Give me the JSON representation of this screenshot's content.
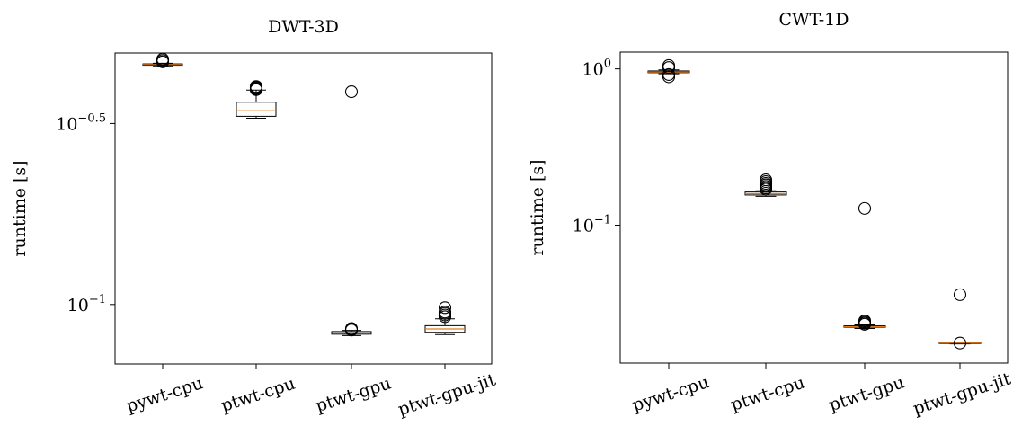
{
  "chart_data": [
    {
      "type": "box",
      "title": "DWT-3D",
      "ylabel": "runtime [s]",
      "xlabel": "",
      "yscale": "log",
      "ylim": [
        0.0685,
        0.495
      ],
      "yticks": [
        {
          "value": 0.3162,
          "base": "10",
          "exp": "−0.5"
        },
        {
          "value": 0.1,
          "base": "10",
          "exp": "−1"
        }
      ],
      "categories": [
        "pywt-cpu",
        "ptwt-cpu",
        "ptwt-gpu",
        "ptwt-gpu-jit"
      ],
      "boxes": [
        {
          "whislo": 0.455,
          "q1": 0.458,
          "med": 0.46,
          "q3": 0.462,
          "whishi": 0.464,
          "fliers": [
            0.468,
            0.472,
            0.476
          ]
        },
        {
          "whislo": 0.327,
          "q1": 0.331,
          "med": 0.343,
          "q3": 0.362,
          "whishi": 0.391,
          "fliers": [
            0.392,
            0.394,
            0.396,
            0.398,
            0.4
          ]
        },
        {
          "whislo": 0.0821,
          "q1": 0.0828,
          "med": 0.0834,
          "q3": 0.0842,
          "whishi": 0.0848,
          "fliers": [
            0.085,
            0.0854,
            0.0858,
            0.387
          ]
        },
        {
          "whislo": 0.0826,
          "q1": 0.0838,
          "med": 0.0856,
          "q3": 0.0874,
          "whishi": 0.0913,
          "fliers": [
            0.0925,
            0.0935,
            0.0945,
            0.0953,
            0.098
          ]
        }
      ]
    },
    {
      "type": "box",
      "title": "CWT-1D",
      "ylabel": "runtime [s]",
      "xlabel": "",
      "yscale": "log",
      "ylim": [
        0.0131,
        1.28
      ],
      "yticks": [
        {
          "value": 1,
          "base": "10",
          "exp": "0"
        },
        {
          "value": 0.1,
          "base": "10",
          "exp": "−1"
        }
      ],
      "categories": [
        "pywt-cpu",
        "ptwt-cpu",
        "ptwt-gpu",
        "ptwt-gpu-jit"
      ],
      "boxes": [
        {
          "whislo": 0.93,
          "q1": 0.945,
          "med": 0.955,
          "q3": 0.97,
          "whishi": 0.985,
          "fliers": [
            0.89,
            0.92,
            1.02,
            1.05
          ]
        },
        {
          "whislo": 0.153,
          "q1": 0.156,
          "med": 0.159,
          "q3": 0.163,
          "whishi": 0.166,
          "fliers": [
            0.17,
            0.173,
            0.177,
            0.181,
            0.185,
            0.19,
            0.195
          ]
        },
        {
          "whislo": 0.0218,
          "q1": 0.0222,
          "med": 0.0224,
          "q3": 0.0227,
          "whishi": 0.023,
          "fliers": [
            0.0232,
            0.0236,
            0.024,
            0.0244,
            0.128
          ]
        },
        {
          "whislo": 0.0174,
          "q1": 0.0175,
          "med": 0.0176,
          "q3": 0.0177,
          "whishi": 0.0178,
          "fliers": [
            0.0176,
            0.0359
          ]
        }
      ]
    }
  ],
  "colors": {
    "median": "#e07c1f",
    "box": "#000000",
    "background": "#ffffff"
  }
}
